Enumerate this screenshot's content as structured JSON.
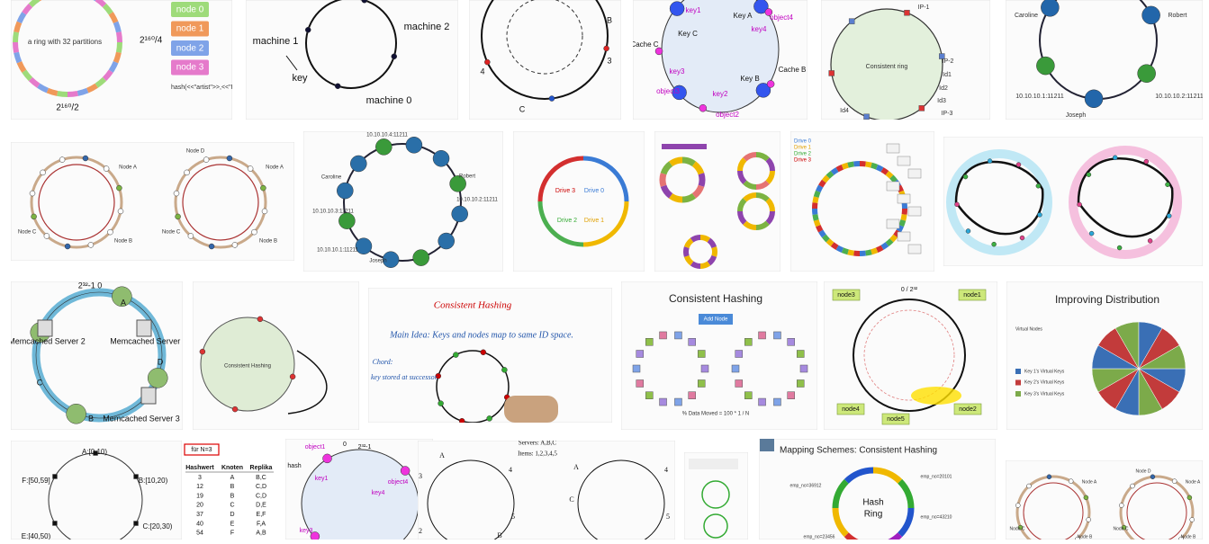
{
  "tiles": [
    [
      "a ring with 32 partitions",
      "2¹⁶⁰/4",
      "2¹⁶⁰/2",
      "hash(<<\"artist\">>,<<\"REM\">>)",
      "node 0",
      "node 1",
      "node 2",
      "node 3"
    ],
    [
      "machine 1",
      "machine 2",
      "machine 0",
      "key"
    ],
    [
      "B",
      "3",
      "4",
      "C"
    ],
    [
      "key1",
      "Key A",
      "object4",
      "Cache C",
      "Key C",
      "key4",
      "Cache B",
      "key3",
      "object3",
      "key2",
      "Key B",
      "object2"
    ],
    [
      "Consistent ring",
      "IP-1",
      "IP-2",
      "Id1",
      "Id2",
      "IP-3",
      "Id3",
      "Id4"
    ],
    [
      "Caroline",
      "Robert",
      "Joseph",
      "10.10.10.1:11211",
      "10.10.10.2:11211"
    ],
    [
      "Node A",
      "Node B",
      "Node C",
      "Node D",
      "Node A",
      "Node B",
      "Node C"
    ],
    [
      "Robert",
      "Caroline",
      "Joseph",
      "10.10.10.4:11211",
      "10.10.10.3:11211",
      "10.10.10.2:11211",
      "10.10.10.1:11211"
    ],
    [
      "Drive 3",
      "Drive 0",
      "Drive 2",
      "Drive 1"
    ],
    [
      "Drive 0",
      "Drive 1",
      "Drive 2",
      "Drive 3"
    ],
    [
      "2³²-1  0",
      "A",
      "B",
      "C",
      "D",
      "Memcached Server 1",
      "Memcached Server 2",
      "Memcached Server 3"
    ],
    [
      "Consistent Hashing"
    ],
    [
      "Consistent Hashing",
      "Main Idea: Keys and nodes map to same ID space.",
      "Chord:",
      "key stored at successor."
    ],
    [
      "Consistent Hashing",
      "Add Node",
      "% Data Moved = 100 * 1 / N"
    ],
    [
      "0 / 2³²",
      "node3",
      "node1",
      "node4",
      "node5",
      "node2"
    ],
    [
      "Improving Distribution",
      "Virtual Nodes",
      "Key 1's Virtual Keys",
      "Key 2's Virtual Keys",
      "Key 3's Virtual Keys"
    ],
    [
      "A:[0,10)",
      "B:[10,20)",
      "C:[20,30)",
      "E:[40,50)",
      "F:[50,59]"
    ],
    [
      "object1",
      "0",
      "2³²-1",
      "key1",
      "key4",
      "object4",
      "key3",
      "hash"
    ],
    [
      "Servers: A,B,C",
      "Items: 1,2,3,4,5",
      "A",
      "4",
      "3",
      "5",
      "2",
      "B",
      "4",
      "C",
      "A",
      "5"
    ],
    [
      "Mapping Schemes: Consistent Hashing",
      "Hash",
      "Ring",
      "emp_no=36912",
      "emp_no=20101",
      "emp_no=43210",
      "emp_no=23456"
    ],
    [
      "Node A",
      "Node C",
      "Node B",
      "Node D",
      "Node A",
      "Node C",
      "Node B"
    ]
  ],
  "table": {
    "caption": "für N=3",
    "header": [
      "Hashwert",
      "Knoten",
      "Replika"
    ],
    "rows": [
      [
        3,
        "A",
        "B,C"
      ],
      [
        12,
        "B",
        "C,D"
      ],
      [
        19,
        "B",
        "C,D"
      ],
      [
        20,
        "C",
        "D,E"
      ],
      [
        37,
        "D",
        "E,F"
      ],
      [
        40,
        "E",
        "F,A"
      ],
      [
        54,
        "F",
        "A,B"
      ]
    ]
  }
}
